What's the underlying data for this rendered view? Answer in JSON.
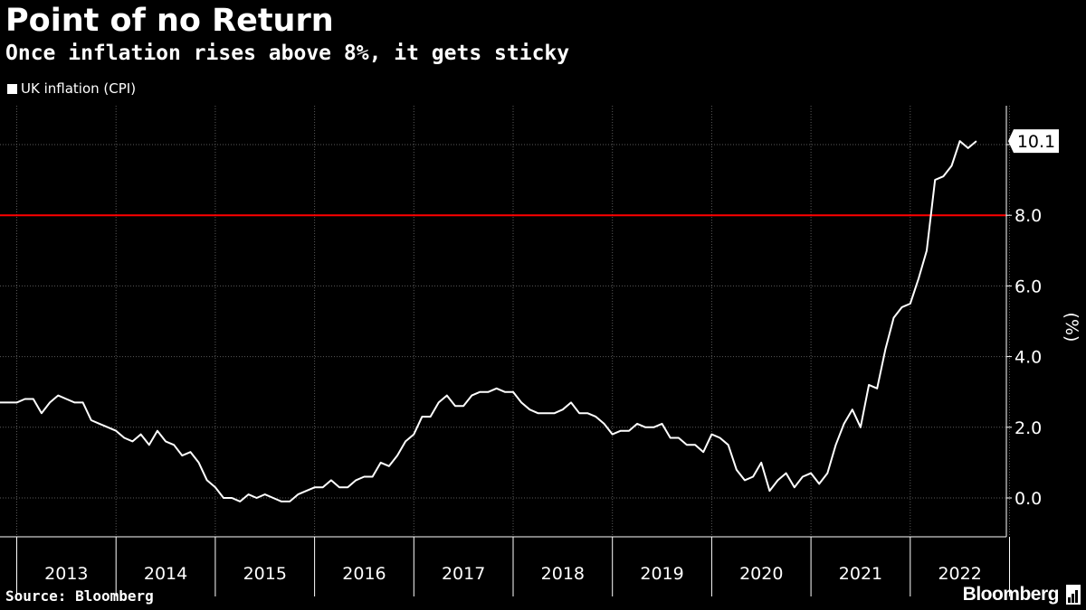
{
  "chart_data": {
    "type": "line",
    "title": "Point of no Return",
    "subtitle": "Once inflation rises above 8%, it gets sticky",
    "legend": [
      "UK inflation (CPI)"
    ],
    "ylabel": "(%)",
    "xlabel": "",
    "ylim": [
      -1.1,
      11.1
    ],
    "yticks": [
      0.0,
      2.0,
      4.0,
      6.0,
      8.0
    ],
    "ytick_labels": [
      "0.0",
      "2.0",
      "4.0",
      "6.0",
      "8.0"
    ],
    "x_start": 2012.75,
    "x_step": 0.08333,
    "year_labels": [
      "2013",
      "2014",
      "2015",
      "2016",
      "2017",
      "2018",
      "2019",
      "2020",
      "2021",
      "2022"
    ],
    "reference_line": {
      "value": 8.0,
      "color": "#ff0000"
    },
    "last_value_label": "10.1",
    "series": [
      {
        "name": "UK inflation (CPI)",
        "color": "#ffffff",
        "values": [
          2.7,
          2.7,
          2.7,
          2.7,
          2.8,
          2.8,
          2.4,
          2.7,
          2.9,
          2.8,
          2.7,
          2.7,
          2.2,
          2.1,
          2.0,
          1.9,
          1.7,
          1.6,
          1.8,
          1.5,
          1.9,
          1.6,
          1.5,
          1.2,
          1.3,
          1.0,
          0.5,
          0.3,
          0.0,
          0.0,
          -0.1,
          0.1,
          0.0,
          0.1,
          0.0,
          -0.1,
          -0.1,
          0.1,
          0.2,
          0.3,
          0.3,
          0.5,
          0.3,
          0.3,
          0.5,
          0.6,
          0.6,
          1.0,
          0.9,
          1.2,
          1.6,
          1.8,
          2.3,
          2.3,
          2.7,
          2.9,
          2.6,
          2.6,
          2.9,
          3.0,
          3.0,
          3.1,
          3.0,
          3.0,
          2.7,
          2.5,
          2.4,
          2.4,
          2.4,
          2.5,
          2.7,
          2.4,
          2.4,
          2.3,
          2.1,
          1.8,
          1.9,
          1.9,
          2.1,
          2.0,
          2.0,
          2.1,
          1.7,
          1.7,
          1.5,
          1.5,
          1.3,
          1.8,
          1.7,
          1.5,
          0.8,
          0.5,
          0.6,
          1.0,
          0.2,
          0.5,
          0.7,
          0.3,
          0.6,
          0.7,
          0.4,
          0.7,
          1.5,
          2.1,
          2.5,
          2.0,
          3.2,
          3.1,
          4.2,
          5.1,
          5.4,
          5.5,
          6.2,
          7.0,
          9.0,
          9.1,
          9.4,
          10.1,
          9.9,
          10.1
        ]
      }
    ]
  },
  "footer": {
    "source": "Source: Bloomberg",
    "brand": "Bloomberg"
  }
}
